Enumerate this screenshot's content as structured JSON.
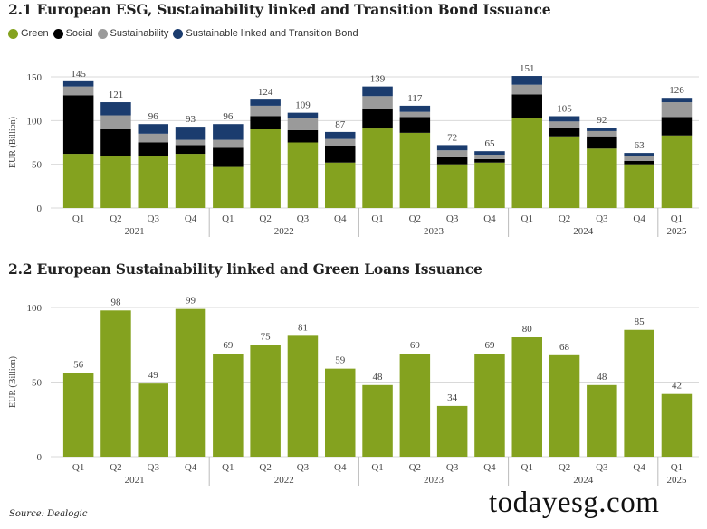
{
  "chart_data": [
    {
      "type": "bar",
      "stacked": true,
      "title": "2.1 European ESG, Sustainability linked and Transition Bond Issuance",
      "ylabel": "EUR (Billion)",
      "ylim": [
        0,
        150
      ],
      "yticks": [
        0,
        50,
        100,
        150
      ],
      "grid": true,
      "legend_position": "top-left",
      "categories": [
        "Q1",
        "Q2",
        "Q3",
        "Q4",
        "Q1",
        "Q2",
        "Q3",
        "Q4",
        "Q1",
        "Q2",
        "Q3",
        "Q4",
        "Q1",
        "Q2",
        "Q3",
        "Q4",
        "Q1"
      ],
      "groups": [
        {
          "label": "2021",
          "start": 0,
          "end": 3
        },
        {
          "label": "2022",
          "start": 4,
          "end": 7
        },
        {
          "label": "2023",
          "start": 8,
          "end": 11
        },
        {
          "label": "2024",
          "start": 12,
          "end": 15
        },
        {
          "label": "2025",
          "start": 16,
          "end": 16
        }
      ],
      "series": [
        {
          "name": "Green",
          "color": "#84a21f",
          "values": [
            62,
            59,
            60,
            62,
            47,
            90,
            75,
            52,
            91,
            86,
            50,
            52,
            103,
            82,
            68,
            50,
            83
          ]
        },
        {
          "name": "Social",
          "color": "#000000",
          "values": [
            67,
            31,
            15,
            10,
            22,
            15,
            14,
            19,
            23,
            18,
            8,
            4,
            27,
            10,
            14,
            4,
            21
          ]
        },
        {
          "name": "Sustainability",
          "color": "#9a9a9a",
          "values": [
            10,
            16,
            10,
            6,
            9,
            12,
            14,
            8,
            14,
            6,
            8,
            5,
            11,
            7,
            6,
            5,
            17
          ]
        },
        {
          "name": "Sustainable linked and Transition Bond",
          "color": "#1b3c6e",
          "values": [
            6,
            15,
            11,
            15,
            18,
            7,
            6,
            8,
            11,
            7,
            6,
            4,
            10,
            6,
            4,
            4,
            5
          ]
        }
      ],
      "totals": [
        145,
        121,
        96,
        93,
        96,
        124,
        109,
        87,
        139,
        117,
        72,
        65,
        151,
        105,
        92,
        63,
        126
      ]
    },
    {
      "type": "bar",
      "title": "2.2 European Sustainability linked and Green Loans Issuance",
      "ylabel": "EUR (Billion)",
      "ylim": [
        0,
        100
      ],
      "yticks": [
        0,
        50,
        100
      ],
      "grid": true,
      "color": "#84a21f",
      "categories": [
        "Q1",
        "Q2",
        "Q3",
        "Q4",
        "Q1",
        "Q2",
        "Q3",
        "Q4",
        "Q1",
        "Q2",
        "Q3",
        "Q4",
        "Q1",
        "Q2",
        "Q3",
        "Q4",
        "Q1"
      ],
      "groups": [
        {
          "label": "2021",
          "start": 0,
          "end": 3
        },
        {
          "label": "2022",
          "start": 4,
          "end": 7
        },
        {
          "label": "2023",
          "start": 8,
          "end": 11
        },
        {
          "label": "2024",
          "start": 12,
          "end": 15
        },
        {
          "label": "2025",
          "start": 16,
          "end": 16
        }
      ],
      "values": [
        56,
        98,
        49,
        99,
        69,
        75,
        81,
        59,
        48,
        69,
        34,
        69,
        80,
        68,
        48,
        85,
        42
      ]
    }
  ],
  "source": "Source: Dealogic",
  "watermark": "todayesg.com"
}
